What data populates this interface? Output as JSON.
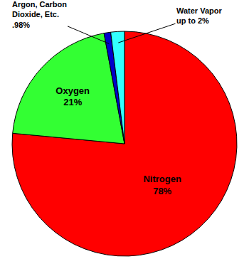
{
  "chart_data": {
    "type": "pie",
    "categories": [
      "Nitrogen",
      "Oxygen",
      "Argon, Carbon Dioxide, Etc.",
      "Water Vapor"
    ],
    "values": [
      78,
      21,
      0.98,
      2
    ],
    "value_labels": [
      "78%",
      "21%",
      ".98%",
      "up to 2%"
    ],
    "colors": [
      "#ff0000",
      "#33ff33",
      "#0000cc",
      "#33ffff"
    ],
    "data_labels": true
  }
}
